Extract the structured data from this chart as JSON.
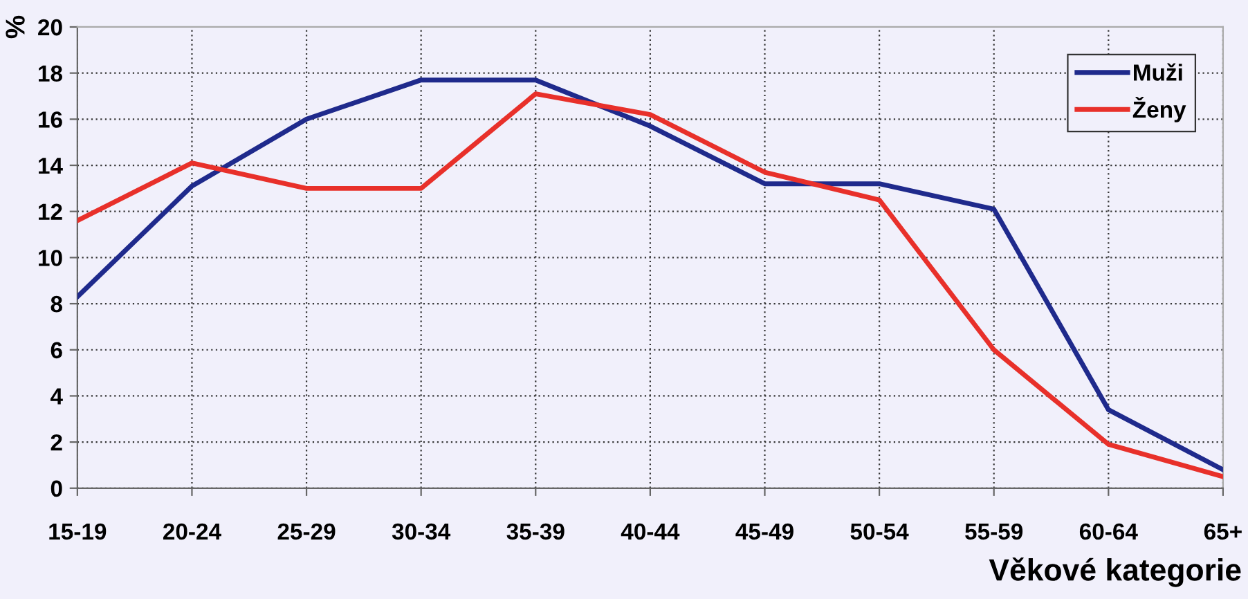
{
  "chart_data": {
    "type": "line",
    "ylabel": "%",
    "xlabel": "Věkové kategorie",
    "categories": [
      "15-19",
      "20-24",
      "25-29",
      "30-34",
      "35-39",
      "40-44",
      "45-49",
      "50-54",
      "55-59",
      "60-64",
      "65+"
    ],
    "series": [
      {
        "name": "Muži",
        "color": "#1f2a8c",
        "values": [
          8.3,
          13.1,
          16.0,
          17.7,
          17.7,
          15.7,
          13.2,
          13.2,
          12.1,
          3.4,
          0.8
        ]
      },
      {
        "name": "Ženy",
        "color": "#e8302a",
        "values": [
          11.6,
          14.1,
          13.0,
          13.0,
          17.1,
          16.2,
          13.7,
          12.5,
          6.0,
          1.9,
          0.5
        ]
      }
    ],
    "ylim": [
      0,
      20
    ],
    "yticks": [
      0,
      2,
      4,
      6,
      8,
      10,
      12,
      14,
      16,
      18,
      20
    ],
    "grid": true,
    "legend": "top right",
    "marker": "none",
    "line_style": "solid"
  }
}
